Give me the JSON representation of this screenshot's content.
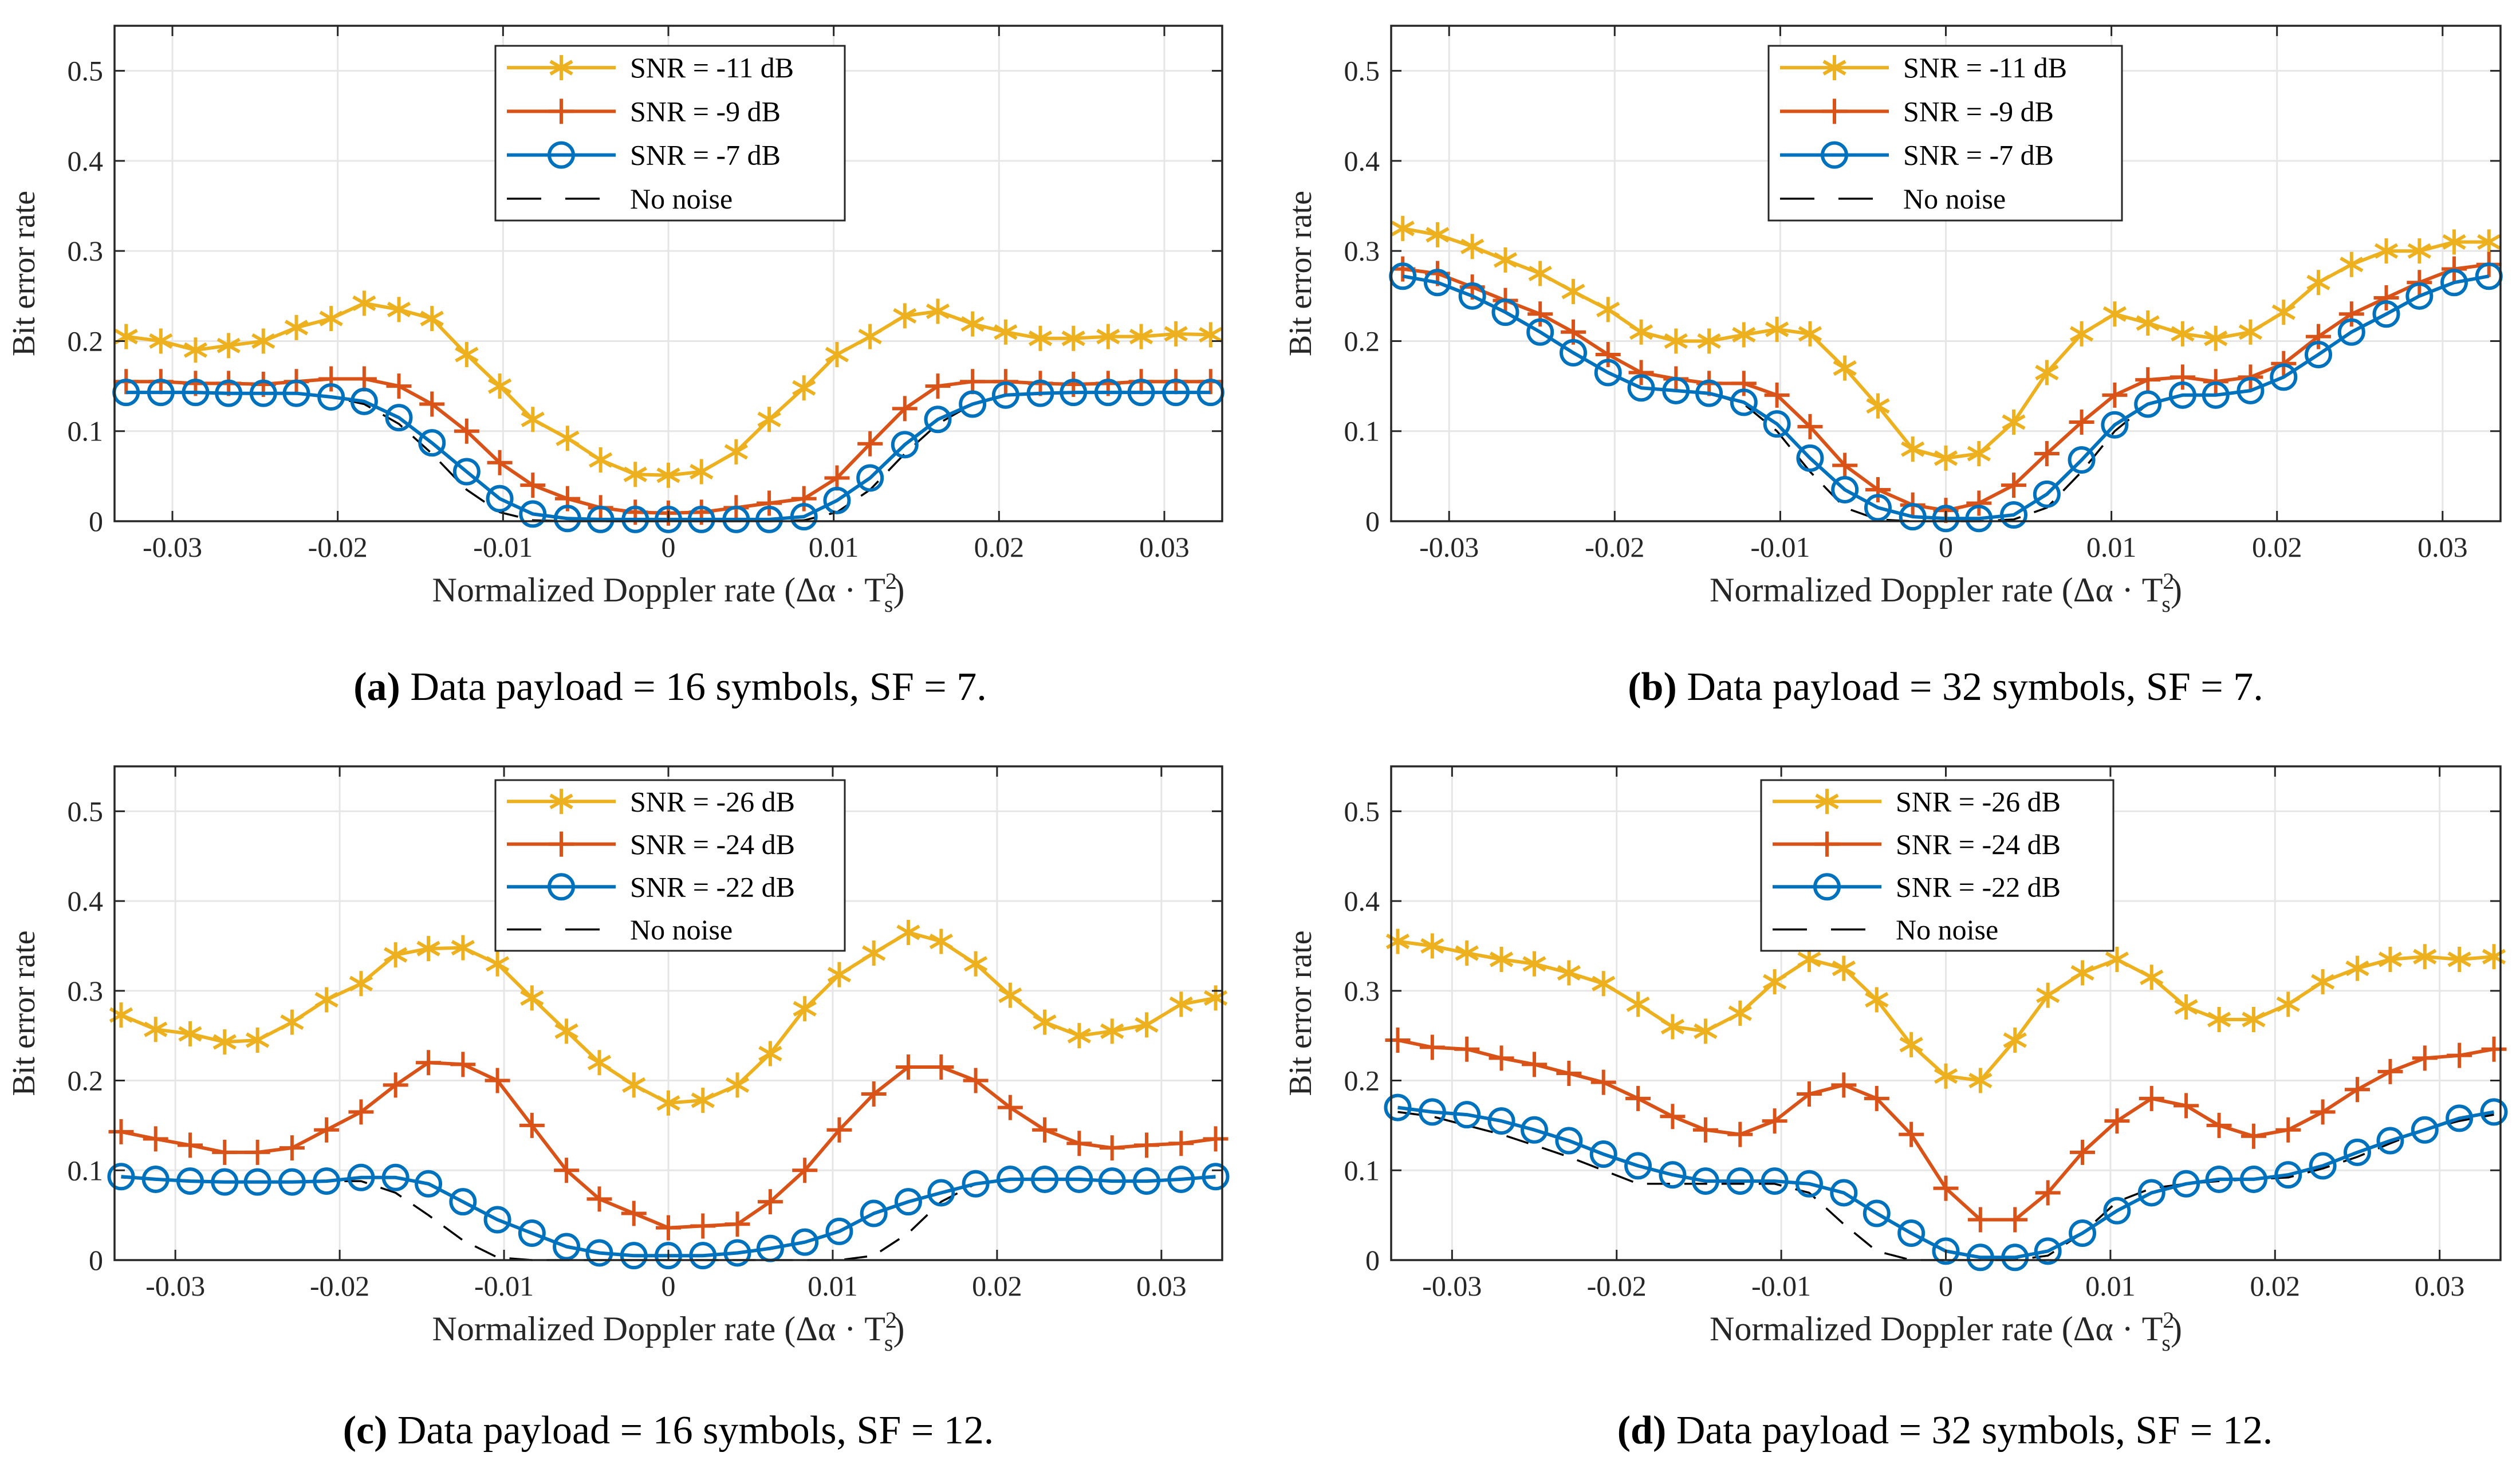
{
  "figure": {
    "series_styles": [
      {
        "key": "s1",
        "color": "#EDB120",
        "marker": "asterisk"
      },
      {
        "key": "s2",
        "color": "#D95319",
        "marker": "plus"
      },
      {
        "key": "s3",
        "color": "#0072BD",
        "marker": "circle"
      },
      {
        "key": "nn",
        "color": "#000000",
        "marker": "none"
      }
    ],
    "grid_color": "#e6e6e6"
  },
  "chart_data": [
    {
      "id": "a",
      "type": "line",
      "caption_label": "(a)",
      "caption_text": " Data payload = 16 symbols, SF = 7.",
      "title": "",
      "xlabel_prefix": "Normalized Doppler rate (Δα · T",
      "xlabel_sub": "s",
      "xlabel_sup": "2",
      "xlabel_suffix": ")",
      "ylabel": "Bit error rate",
      "xlim": [
        -0.0335,
        0.0335
      ],
      "ylim": [
        0,
        0.55
      ],
      "xticks": [
        -0.03,
        -0.02,
        -0.01,
        0,
        0.01,
        0.02,
        0.03
      ],
      "xtick_labels": [
        "-0.03",
        "-0.02",
        "-0.01",
        "0",
        "0.01",
        "0.02",
        "0.03"
      ],
      "yticks": [
        0,
        0.1,
        0.2,
        0.3,
        0.4,
        0.5
      ],
      "ytick_labels": [
        "0",
        "0.1",
        "0.2",
        "0.3",
        "0.4",
        "0.5"
      ],
      "grid": true,
      "legend_position": "top-center",
      "x": [
        -0.0328,
        -0.0307,
        -0.0286,
        -0.0266,
        -0.0245,
        -0.0225,
        -0.0204,
        -0.0184,
        -0.0163,
        -0.0143,
        -0.0122,
        -0.0102,
        -0.0082,
        -0.0061,
        -0.0041,
        -0.002,
        0.0,
        0.002,
        0.0041,
        0.0061,
        0.0082,
        0.0102,
        0.0122,
        0.0143,
        0.0163,
        0.0184,
        0.0204,
        0.0225,
        0.0245,
        0.0266,
        0.0286,
        0.0307,
        0.0328
      ],
      "series": [
        {
          "name": "SNR = -11 dB",
          "values": [
            0.205,
            0.2,
            0.19,
            0.195,
            0.2,
            0.215,
            0.225,
            0.242,
            0.235,
            0.225,
            0.185,
            0.15,
            0.113,
            0.092,
            0.068,
            0.052,
            0.051,
            0.055,
            0.077,
            0.113,
            0.148,
            0.185,
            0.205,
            0.228,
            0.233,
            0.219,
            0.21,
            0.203,
            0.203,
            0.205,
            0.205,
            0.208,
            0.207
          ]
        },
        {
          "name": "SNR = -9 dB",
          "values": [
            0.155,
            0.155,
            0.153,
            0.153,
            0.152,
            0.155,
            0.158,
            0.158,
            0.15,
            0.13,
            0.1,
            0.065,
            0.04,
            0.025,
            0.015,
            0.01,
            0.009,
            0.01,
            0.015,
            0.02,
            0.025,
            0.048,
            0.086,
            0.125,
            0.15,
            0.155,
            0.155,
            0.153,
            0.152,
            0.153,
            0.155,
            0.155,
            0.155
          ]
        },
        {
          "name": "SNR = -7 dB",
          "values": [
            0.143,
            0.143,
            0.143,
            0.142,
            0.142,
            0.142,
            0.138,
            0.133,
            0.115,
            0.087,
            0.055,
            0.025,
            0.008,
            0.003,
            0.002,
            0.002,
            0.002,
            0.002,
            0.002,
            0.002,
            0.005,
            0.023,
            0.048,
            0.085,
            0.113,
            0.13,
            0.14,
            0.142,
            0.143,
            0.143,
            0.143,
            0.143,
            0.143
          ]
        },
        {
          "name": "No noise",
          "values": [
            0.143,
            0.143,
            0.143,
            0.142,
            0.142,
            0.142,
            0.138,
            0.13,
            0.108,
            0.075,
            0.035,
            0.01,
            0.001,
            0.0,
            0.0,
            0.0,
            0.0,
            0.0,
            0.0,
            0.0,
            0.001,
            0.01,
            0.035,
            0.075,
            0.108,
            0.13,
            0.14,
            0.142,
            0.143,
            0.143,
            0.143,
            0.143,
            0.143
          ]
        }
      ]
    },
    {
      "id": "b",
      "type": "line",
      "caption_label": "(b)",
      "caption_text": " Data payload = 32 symbols, SF = 7.",
      "title": "",
      "xlabel_prefix": "Normalized Doppler rate (Δα · T",
      "xlabel_sub": "s",
      "xlabel_sup": "2",
      "xlabel_suffix": ")",
      "ylabel": "Bit error rate",
      "xlim": [
        -0.0335,
        0.0335
      ],
      "ylim": [
        0,
        0.55
      ],
      "xticks": [
        -0.03,
        -0.02,
        -0.01,
        0,
        0.01,
        0.02,
        0.03
      ],
      "xtick_labels": [
        "-0.03",
        "-0.02",
        "-0.01",
        "0",
        "0.01",
        "0.02",
        "0.03"
      ],
      "yticks": [
        0,
        0.1,
        0.2,
        0.3,
        0.4,
        0.5
      ],
      "ytick_labels": [
        "0",
        "0.1",
        "0.2",
        "0.3",
        "0.4",
        "0.5"
      ],
      "grid": true,
      "legend_position": "top-center",
      "x": [
        -0.0328,
        -0.0307,
        -0.0286,
        -0.0266,
        -0.0245,
        -0.0225,
        -0.0204,
        -0.0184,
        -0.0163,
        -0.0143,
        -0.0122,
        -0.0102,
        -0.0082,
        -0.0061,
        -0.0041,
        -0.002,
        0.0,
        0.002,
        0.0041,
        0.0061,
        0.0082,
        0.0102,
        0.0122,
        0.0143,
        0.0163,
        0.0184,
        0.0204,
        0.0225,
        0.0245,
        0.0266,
        0.0286,
        0.0307,
        0.0328
      ],
      "series": [
        {
          "name": "SNR = -11 dB",
          "values": [
            0.325,
            0.318,
            0.305,
            0.29,
            0.275,
            0.255,
            0.235,
            0.21,
            0.2,
            0.2,
            0.207,
            0.213,
            0.208,
            0.17,
            0.128,
            0.08,
            0.07,
            0.075,
            0.11,
            0.165,
            0.208,
            0.23,
            0.22,
            0.208,
            0.203,
            0.21,
            0.232,
            0.265,
            0.285,
            0.3,
            0.3,
            0.31,
            0.31
          ]
        },
        {
          "name": "SNR = -9 dB",
          "values": [
            0.28,
            0.275,
            0.26,
            0.245,
            0.23,
            0.21,
            0.185,
            0.165,
            0.158,
            0.153,
            0.153,
            0.14,
            0.105,
            0.062,
            0.035,
            0.018,
            0.012,
            0.02,
            0.04,
            0.075,
            0.11,
            0.14,
            0.157,
            0.16,
            0.155,
            0.16,
            0.175,
            0.205,
            0.23,
            0.248,
            0.265,
            0.28,
            0.285
          ]
        },
        {
          "name": "SNR = -7 dB",
          "values": [
            0.272,
            0.265,
            0.25,
            0.232,
            0.21,
            0.187,
            0.165,
            0.148,
            0.145,
            0.142,
            0.132,
            0.108,
            0.07,
            0.035,
            0.015,
            0.005,
            0.003,
            0.003,
            0.007,
            0.03,
            0.068,
            0.107,
            0.13,
            0.14,
            0.14,
            0.145,
            0.16,
            0.185,
            0.21,
            0.23,
            0.25,
            0.265,
            0.272
          ]
        },
        {
          "name": "No noise",
          "values": [
            0.272,
            0.265,
            0.25,
            0.232,
            0.21,
            0.187,
            0.165,
            0.148,
            0.145,
            0.142,
            0.13,
            0.1,
            0.055,
            0.015,
            0.002,
            0.0,
            0.0,
            0.0,
            0.002,
            0.015,
            0.055,
            0.1,
            0.13,
            0.14,
            0.14,
            0.145,
            0.16,
            0.185,
            0.21,
            0.23,
            0.25,
            0.265,
            0.272
          ]
        }
      ]
    },
    {
      "id": "c",
      "type": "line",
      "caption_label": "(c)",
      "caption_text": " Data payload = 16 symbols, SF = 12.",
      "title": "",
      "xlabel_prefix": "Normalized Doppler rate (Δα · T",
      "xlabel_sub": "s",
      "xlabel_sup": "2",
      "xlabel_suffix": ")",
      "ylabel": "Bit error rate",
      "xlim": [
        -0.0337,
        0.0337
      ],
      "ylim": [
        0,
        0.55
      ],
      "xticks": [
        -0.03,
        -0.02,
        -0.01,
        0,
        0.01,
        0.02,
        0.03
      ],
      "xtick_labels": [
        "-0.03",
        "-0.02",
        "-0.01",
        "0",
        "0.01",
        "0.02",
        "0.03"
      ],
      "yticks": [
        0,
        0.1,
        0.2,
        0.3,
        0.4,
        0.5
      ],
      "ytick_labels": [
        "0",
        "0.1",
        "0.2",
        "0.3",
        "0.4",
        "0.5"
      ],
      "grid": true,
      "legend_position": "top-center",
      "x": [
        -0.0333,
        -0.0312,
        -0.0291,
        -0.027,
        -0.025,
        -0.0229,
        -0.0208,
        -0.0187,
        -0.0166,
        -0.0146,
        -0.0125,
        -0.0104,
        -0.0083,
        -0.0062,
        -0.0042,
        -0.0021,
        0.0,
        0.0021,
        0.0042,
        0.0062,
        0.0083,
        0.0104,
        0.0125,
        0.0146,
        0.0166,
        0.0187,
        0.0208,
        0.0229,
        0.025,
        0.027,
        0.0291,
        0.0312,
        0.0333
      ],
      "series": [
        {
          "name": "SNR = -26 dB",
          "values": [
            0.273,
            0.257,
            0.252,
            0.243,
            0.245,
            0.265,
            0.29,
            0.308,
            0.34,
            0.347,
            0.348,
            0.33,
            0.292,
            0.255,
            0.22,
            0.195,
            0.175,
            0.178,
            0.195,
            0.23,
            0.28,
            0.318,
            0.342,
            0.365,
            0.355,
            0.33,
            0.295,
            0.265,
            0.25,
            0.255,
            0.262,
            0.285,
            0.292
          ]
        },
        {
          "name": "SNR = -24 dB",
          "values": [
            0.143,
            0.135,
            0.128,
            0.12,
            0.12,
            0.125,
            0.145,
            0.165,
            0.195,
            0.22,
            0.218,
            0.2,
            0.15,
            0.1,
            0.068,
            0.052,
            0.036,
            0.038,
            0.04,
            0.065,
            0.1,
            0.145,
            0.185,
            0.215,
            0.215,
            0.2,
            0.17,
            0.145,
            0.13,
            0.125,
            0.128,
            0.13,
            0.135
          ]
        },
        {
          "name": "SNR = -22 dB",
          "values": [
            0.093,
            0.09,
            0.088,
            0.087,
            0.087,
            0.087,
            0.088,
            0.092,
            0.092,
            0.085,
            0.065,
            0.045,
            0.03,
            0.015,
            0.008,
            0.005,
            0.005,
            0.005,
            0.008,
            0.013,
            0.02,
            0.032,
            0.052,
            0.065,
            0.075,
            0.085,
            0.09,
            0.09,
            0.09,
            0.088,
            0.088,
            0.09,
            0.093
          ]
        },
        {
          "name": "No noise",
          "values": [
            0.092,
            0.09,
            0.088,
            0.087,
            0.087,
            0.087,
            0.088,
            0.088,
            0.075,
            0.05,
            0.022,
            0.003,
            0.0,
            0.0,
            0.0,
            0.0,
            0.0,
            0.0,
            0.0,
            0.0,
            0.0,
            0.0,
            0.005,
            0.03,
            0.065,
            0.085,
            0.09,
            0.09,
            0.09,
            0.088,
            0.088,
            0.09,
            0.092
          ]
        }
      ]
    },
    {
      "id": "d",
      "type": "line",
      "caption_label": "(d)",
      "caption_text": " Data payload = 32 symbols, SF = 12.",
      "title": "",
      "xlabel_prefix": "Normalized Doppler rate (Δα · T",
      "xlabel_sub": "s",
      "xlabel_sup": "2",
      "xlabel_suffix": ")",
      "ylabel": "Bit error rate",
      "xlim": [
        -0.0337,
        0.0337
      ],
      "ylim": [
        0,
        0.55
      ],
      "xticks": [
        -0.03,
        -0.02,
        -0.01,
        0,
        0.01,
        0.02,
        0.03
      ],
      "xtick_labels": [
        "-0.03",
        "-0.02",
        "-0.01",
        "0",
        "0.01",
        "0.02",
        "0.03"
      ],
      "yticks": [
        0,
        0.1,
        0.2,
        0.3,
        0.4,
        0.5
      ],
      "ytick_labels": [
        "0",
        "0.1",
        "0.2",
        "0.3",
        "0.4",
        "0.5"
      ],
      "grid": true,
      "legend_position": "top-center",
      "x": [
        -0.0333,
        -0.0312,
        -0.0291,
        -0.027,
        -0.025,
        -0.0229,
        -0.0208,
        -0.0187,
        -0.0166,
        -0.0146,
        -0.0125,
        -0.0104,
        -0.0083,
        -0.0062,
        -0.0042,
        -0.0021,
        0.0,
        0.0021,
        0.0042,
        0.0062,
        0.0083,
        0.0104,
        0.0125,
        0.0146,
        0.0166,
        0.0187,
        0.0208,
        0.0229,
        0.025,
        0.027,
        0.0291,
        0.0312,
        0.0333
      ],
      "series": [
        {
          "name": "SNR = -26 dB",
          "values": [
            0.355,
            0.35,
            0.342,
            0.335,
            0.33,
            0.32,
            0.308,
            0.285,
            0.26,
            0.255,
            0.275,
            0.31,
            0.335,
            0.325,
            0.29,
            0.24,
            0.205,
            0.2,
            0.245,
            0.295,
            0.32,
            0.335,
            0.315,
            0.282,
            0.268,
            0.268,
            0.285,
            0.31,
            0.325,
            0.335,
            0.338,
            0.335,
            0.338
          ]
        },
        {
          "name": "SNR = -24 dB",
          "values": [
            0.245,
            0.237,
            0.235,
            0.225,
            0.218,
            0.208,
            0.198,
            0.18,
            0.16,
            0.145,
            0.14,
            0.155,
            0.185,
            0.195,
            0.18,
            0.14,
            0.08,
            0.045,
            0.045,
            0.075,
            0.12,
            0.155,
            0.18,
            0.172,
            0.15,
            0.138,
            0.145,
            0.165,
            0.19,
            0.21,
            0.225,
            0.228,
            0.235
          ]
        },
        {
          "name": "SNR = -22 dB",
          "values": [
            0.17,
            0.165,
            0.162,
            0.155,
            0.145,
            0.133,
            0.118,
            0.105,
            0.095,
            0.088,
            0.088,
            0.088,
            0.085,
            0.075,
            0.052,
            0.03,
            0.01,
            0.003,
            0.003,
            0.01,
            0.03,
            0.055,
            0.075,
            0.085,
            0.09,
            0.09,
            0.095,
            0.105,
            0.12,
            0.133,
            0.145,
            0.158,
            0.165
          ]
        },
        {
          "name": "No noise",
          "values": [
            0.165,
            0.16,
            0.15,
            0.14,
            0.128,
            0.115,
            0.1,
            0.085,
            0.085,
            0.085,
            0.085,
            0.085,
            0.075,
            0.04,
            0.01,
            0.0,
            0.0,
            0.0,
            0.0,
            0.005,
            0.03,
            0.065,
            0.08,
            0.085,
            0.088,
            0.09,
            0.092,
            0.102,
            0.115,
            0.13,
            0.145,
            0.155,
            0.162
          ]
        }
      ]
    }
  ]
}
